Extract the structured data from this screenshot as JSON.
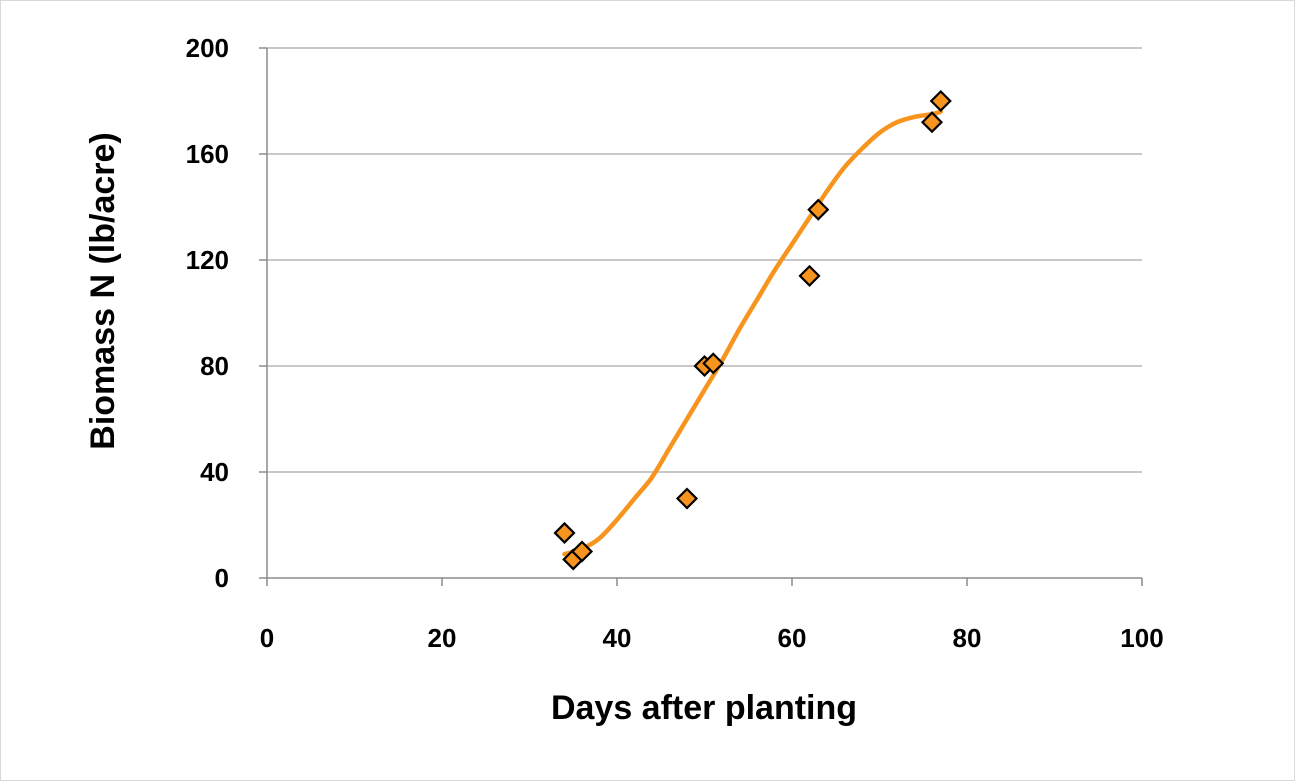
{
  "chart_data": {
    "type": "scatter",
    "title": "",
    "xlabel": "Days after planting",
    "ylabel": "Biomass N (lb/acre)",
    "xlim": [
      0,
      100
    ],
    "ylim": [
      0,
      200
    ],
    "x_ticks": [
      0,
      20,
      40,
      60,
      80,
      100
    ],
    "y_ticks": [
      0,
      40,
      80,
      120,
      160,
      200
    ],
    "grid": "horizontal",
    "legend": "none",
    "series": [
      {
        "marker": "diamond",
        "color": "#f7941d",
        "edge_color": "#000000",
        "points": [
          {
            "x": 34,
            "y": 17
          },
          {
            "x": 35,
            "y": 7
          },
          {
            "x": 36,
            "y": 10
          },
          {
            "x": 48,
            "y": 30
          },
          {
            "x": 50,
            "y": 80
          },
          {
            "x": 51,
            "y": 81
          },
          {
            "x": 62,
            "y": 114
          },
          {
            "x": 63,
            "y": 139
          },
          {
            "x": 76,
            "y": 172
          },
          {
            "x": 77,
            "y": 180
          }
        ]
      }
    ],
    "trendline": {
      "type": "polynomial",
      "color": "#f7941d",
      "points": [
        {
          "x": 34,
          "y": 9
        },
        {
          "x": 36,
          "y": 11
        },
        {
          "x": 38,
          "y": 15
        },
        {
          "x": 40,
          "y": 22
        },
        {
          "x": 42,
          "y": 30
        },
        {
          "x": 44,
          "y": 38
        },
        {
          "x": 46,
          "y": 49
        },
        {
          "x": 48,
          "y": 60
        },
        {
          "x": 50,
          "y": 71
        },
        {
          "x": 52,
          "y": 82
        },
        {
          "x": 54,
          "y": 94
        },
        {
          "x": 56,
          "y": 105
        },
        {
          "x": 58,
          "y": 116
        },
        {
          "x": 60,
          "y": 126
        },
        {
          "x": 62,
          "y": 136
        },
        {
          "x": 64,
          "y": 146
        },
        {
          "x": 66,
          "y": 155
        },
        {
          "x": 68,
          "y": 162
        },
        {
          "x": 70,
          "y": 168
        },
        {
          "x": 72,
          "y": 172
        },
        {
          "x": 74,
          "y": 174
        },
        {
          "x": 76,
          "y": 175
        },
        {
          "x": 77,
          "y": 176
        }
      ]
    }
  }
}
